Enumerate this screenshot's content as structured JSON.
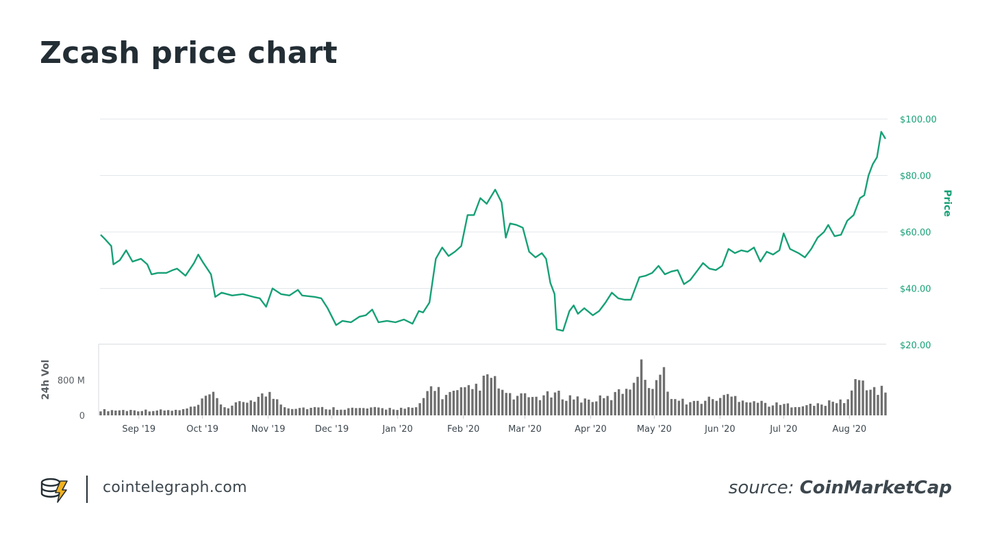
{
  "title": "Zcash price chart",
  "footer": {
    "site": "cointelegraph.com",
    "source_prefix": "source:",
    "source_name": "CoinMarketCap",
    "logo_icon": "cointelegraph-logo-icon"
  },
  "colors": {
    "price_line": "#16a076",
    "volume_bar": "#6f6f6f",
    "grid": "#e2e6ea",
    "title": "#232d34"
  },
  "chart_data": [
    {
      "type": "line",
      "ylabel": "Price",
      "ylim": [
        20,
        100
      ],
      "y_ticks": [
        "$20.00",
        "$40.00",
        "$60.00",
        "$80.00",
        "$100.00"
      ],
      "y_tick_values": [
        20,
        40,
        60,
        80,
        100
      ],
      "x_tick_labels": [
        "Sep '19",
        "Oct '19",
        "Nov '19",
        "Dec '19",
        "Jan '20",
        "Feb '20",
        "Mar '20",
        "Apr '20",
        "May '20",
        "Jun '20",
        "Jul '20",
        "Aug '20"
      ],
      "x_tick_dates": [
        "2019-09-01",
        "2019-10-01",
        "2019-11-01",
        "2019-12-01",
        "2020-01-01",
        "2020-02-01",
        "2020-03-01",
        "2020-04-01",
        "2020-05-01",
        "2020-06-01",
        "2020-07-01",
        "2020-08-01"
      ],
      "grid": true,
      "series": [
        {
          "name": "Price",
          "points": [
            [
              "2019-08-14",
              59.0
            ],
            [
              "2019-08-16",
              57.5
            ],
            [
              "2019-08-19",
              55.0
            ],
            [
              "2019-08-20",
              48.5
            ],
            [
              "2019-08-23",
              50.0
            ],
            [
              "2019-08-26",
              53.5
            ],
            [
              "2019-08-29",
              49.5
            ],
            [
              "2019-09-02",
              50.5
            ],
            [
              "2019-09-05",
              48.5
            ],
            [
              "2019-09-07",
              45.0
            ],
            [
              "2019-09-10",
              45.5
            ],
            [
              "2019-09-14",
              45.5
            ],
            [
              "2019-09-17",
              46.5
            ],
            [
              "2019-09-19",
              47.0
            ],
            [
              "2019-09-23",
              44.5
            ],
            [
              "2019-09-27",
              49.0
            ],
            [
              "2019-09-29",
              52.0
            ],
            [
              "2019-10-01",
              49.5
            ],
            [
              "2019-10-05",
              45.0
            ],
            [
              "2019-10-07",
              37.0
            ],
            [
              "2019-10-10",
              38.5
            ],
            [
              "2019-10-15",
              37.5
            ],
            [
              "2019-10-20",
              38.0
            ],
            [
              "2019-10-25",
              37.0
            ],
            [
              "2019-10-28",
              36.5
            ],
            [
              "2019-10-31",
              33.5
            ],
            [
              "2019-11-03",
              40.0
            ],
            [
              "2019-11-07",
              38.0
            ],
            [
              "2019-11-11",
              37.5
            ],
            [
              "2019-11-15",
              39.5
            ],
            [
              "2019-11-17",
              37.5
            ],
            [
              "2019-11-23",
              37.0
            ],
            [
              "2019-11-26",
              36.5
            ],
            [
              "2019-11-29",
              33.0
            ],
            [
              "2019-12-03",
              27.0
            ],
            [
              "2019-12-06",
              28.5
            ],
            [
              "2019-12-10",
              28.0
            ],
            [
              "2019-12-14",
              30.0
            ],
            [
              "2019-12-17",
              30.5
            ],
            [
              "2019-12-20",
              32.5
            ],
            [
              "2019-12-23",
              28.0
            ],
            [
              "2019-12-27",
              28.5
            ],
            [
              "2019-12-31",
              28.0
            ],
            [
              "2020-01-04",
              29.0
            ],
            [
              "2020-01-08",
              27.5
            ],
            [
              "2020-01-11",
              32.0
            ],
            [
              "2020-01-13",
              31.5
            ],
            [
              "2020-01-16",
              35.0
            ],
            [
              "2020-01-19",
              50.5
            ],
            [
              "2020-01-22",
              54.5
            ],
            [
              "2020-01-25",
              51.5
            ],
            [
              "2020-01-28",
              53.0
            ],
            [
              "2020-01-31",
              55.0
            ],
            [
              "2020-02-03",
              66.0
            ],
            [
              "2020-02-06",
              66.0
            ],
            [
              "2020-02-09",
              72.0
            ],
            [
              "2020-02-12",
              70.0
            ],
            [
              "2020-02-16",
              75.0
            ],
            [
              "2020-02-19",
              70.5
            ],
            [
              "2020-02-21",
              58.0
            ],
            [
              "2020-02-23",
              63.0
            ],
            [
              "2020-02-26",
              62.5
            ],
            [
              "2020-02-29",
              61.5
            ],
            [
              "2020-03-03",
              53.0
            ],
            [
              "2020-03-06",
              51.0
            ],
            [
              "2020-03-09",
              52.5
            ],
            [
              "2020-03-11",
              50.5
            ],
            [
              "2020-03-13",
              42.0
            ],
            [
              "2020-03-15",
              38.0
            ],
            [
              "2020-03-16",
              25.5
            ],
            [
              "2020-03-19",
              25.0
            ],
            [
              "2020-03-22",
              32.0
            ],
            [
              "2020-03-24",
              34.0
            ],
            [
              "2020-03-26",
              31.0
            ],
            [
              "2020-03-29",
              33.0
            ],
            [
              "2020-04-02",
              30.5
            ],
            [
              "2020-04-05",
              32.0
            ],
            [
              "2020-04-08",
              35.0
            ],
            [
              "2020-04-11",
              38.5
            ],
            [
              "2020-04-14",
              36.5
            ],
            [
              "2020-04-17",
              36.0
            ],
            [
              "2020-04-20",
              36.0
            ],
            [
              "2020-04-24",
              44.0
            ],
            [
              "2020-04-27",
              44.5
            ],
            [
              "2020-04-30",
              45.5
            ],
            [
              "2020-05-03",
              48.0
            ],
            [
              "2020-05-06",
              45.0
            ],
            [
              "2020-05-09",
              46.0
            ],
            [
              "2020-05-12",
              46.5
            ],
            [
              "2020-05-15",
              41.5
            ],
            [
              "2020-05-18",
              43.0
            ],
            [
              "2020-05-21",
              46.0
            ],
            [
              "2020-05-24",
              49.0
            ],
            [
              "2020-05-27",
              47.0
            ],
            [
              "2020-05-30",
              46.5
            ],
            [
              "2020-06-02",
              48.0
            ],
            [
              "2020-06-05",
              54.0
            ],
            [
              "2020-06-08",
              52.5
            ],
            [
              "2020-06-11",
              53.5
            ],
            [
              "2020-06-14",
              53.0
            ],
            [
              "2020-06-17",
              54.5
            ],
            [
              "2020-06-20",
              49.5
            ],
            [
              "2020-06-23",
              53.0
            ],
            [
              "2020-06-26",
              52.0
            ],
            [
              "2020-06-29",
              53.5
            ],
            [
              "2020-07-01",
              59.5
            ],
            [
              "2020-07-04",
              54.0
            ],
            [
              "2020-07-08",
              52.5
            ],
            [
              "2020-07-11",
              51.0
            ],
            [
              "2020-07-14",
              54.0
            ],
            [
              "2020-07-17",
              58.0
            ],
            [
              "2020-07-20",
              60.0
            ],
            [
              "2020-07-22",
              62.5
            ],
            [
              "2020-07-25",
              58.5
            ],
            [
              "2020-07-28",
              59.0
            ],
            [
              "2020-07-31",
              64.0
            ],
            [
              "2020-08-03",
              66.0
            ],
            [
              "2020-08-06",
              72.0
            ],
            [
              "2020-08-08",
              73.0
            ],
            [
              "2020-08-10",
              80.0
            ],
            [
              "2020-08-12",
              84.0
            ],
            [
              "2020-08-14",
              86.5
            ],
            [
              "2020-08-16",
              95.5
            ],
            [
              "2020-08-18",
              93.0
            ]
          ]
        }
      ]
    },
    {
      "type": "bar",
      "ylabel": "24h Vol",
      "ylim_millions": [
        0,
        1600
      ],
      "y_ticks": [
        "0",
        "800 M"
      ],
      "y_tick_values_millions": [
        0,
        800
      ],
      "series": [
        {
          "name": "24h Vol",
          "unit": "M",
          "start_date": "2019-08-14",
          "end_date": "2020-08-18",
          "bar_count": 210,
          "anchors_millions": [
            [
              "2019-08-14",
              120
            ],
            [
              "2019-09-20",
              115
            ],
            [
              "2019-09-28",
              200
            ],
            [
              "2019-10-05",
              500
            ],
            [
              "2019-10-12",
              170
            ],
            [
              "2019-11-01",
              500
            ],
            [
              "2019-11-05",
              380
            ],
            [
              "2019-11-10",
              180
            ],
            [
              "2019-12-10",
              160
            ],
            [
              "2020-01-10",
              160
            ],
            [
              "2020-01-18",
              750
            ],
            [
              "2020-01-22",
              450
            ],
            [
              "2020-02-05",
              600
            ],
            [
              "2020-02-14",
              880
            ],
            [
              "2020-02-22",
              430
            ],
            [
              "2020-03-05",
              420
            ],
            [
              "2020-03-16",
              480
            ],
            [
              "2020-03-30",
              350
            ],
            [
              "2020-04-10",
              400
            ],
            [
              "2020-04-20",
              700
            ],
            [
              "2020-04-24",
              1180
            ],
            [
              "2020-04-29",
              700
            ],
            [
              "2020-05-05",
              1020
            ],
            [
              "2020-05-10",
              350
            ],
            [
              "2020-05-20",
              300
            ],
            [
              "2020-06-05",
              450
            ],
            [
              "2020-06-25",
              250
            ],
            [
              "2020-07-15",
              230
            ],
            [
              "2020-07-31",
              350
            ],
            [
              "2020-08-05",
              850
            ],
            [
              "2020-08-12",
              600
            ],
            [
              "2020-08-18",
              550
            ]
          ]
        }
      ]
    }
  ]
}
